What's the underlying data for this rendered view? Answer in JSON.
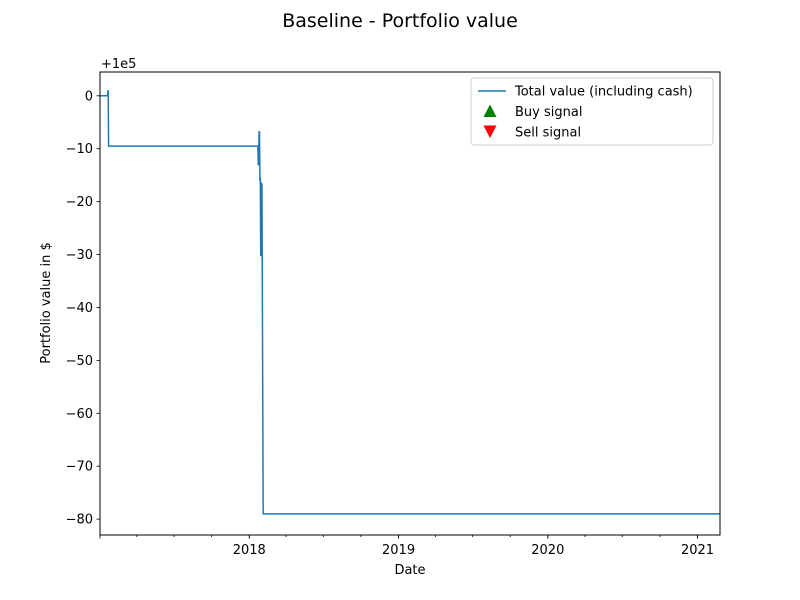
{
  "chart_data": {
    "type": "line",
    "title": "Baseline - Portfolio value",
    "xlabel": "Date",
    "ylabel": "Portfolio value in $",
    "y_offset_text": "+1e5",
    "x_axis": "date",
    "xlim": [
      "2017-01-01",
      "2021-02-25"
    ],
    "ylim": [
      -83,
      4.5
    ],
    "x_ticks": [
      {
        "date": "2018-01-01",
        "label": "2018"
      },
      {
        "date": "2019-01-01",
        "label": "2019"
      },
      {
        "date": "2020-01-01",
        "label": "2020"
      },
      {
        "date": "2021-01-01",
        "label": "2021"
      }
    ],
    "y_ticks": [
      {
        "value": 0,
        "label": "0"
      },
      {
        "value": -10,
        "label": "−10"
      },
      {
        "value": -20,
        "label": "−20"
      },
      {
        "value": -30,
        "label": "−30"
      },
      {
        "value": -40,
        "label": "−40"
      },
      {
        "value": -50,
        "label": "−50"
      },
      {
        "value": -60,
        "label": "−60"
      },
      {
        "value": -70,
        "label": "−70"
      },
      {
        "value": -80,
        "label": "−80"
      }
    ],
    "grid": false,
    "legend_position": "top-right",
    "series": [
      {
        "name": "Total value (including cash)",
        "color": "#1f77b4",
        "points": [
          [
            "2017-01-01",
            0
          ],
          [
            "2017-01-19",
            0
          ],
          [
            "2017-01-21",
            1
          ],
          [
            "2017-01-22",
            -9.5
          ],
          [
            "2018-01-22",
            -9.5
          ],
          [
            "2018-01-23",
            -13
          ],
          [
            "2018-01-24",
            -13
          ],
          [
            "2018-01-25",
            -6.8
          ],
          [
            "2018-01-26",
            -6.8
          ],
          [
            "2018-01-27",
            -16
          ],
          [
            "2018-01-28",
            -15.5
          ],
          [
            "2018-01-29",
            -30.2
          ],
          [
            "2018-01-30",
            -19
          ],
          [
            "2018-01-31",
            -16.5
          ],
          [
            "2018-02-01",
            -16.8
          ],
          [
            "2018-02-04",
            -79
          ],
          [
            "2021-02-25",
            -79
          ]
        ]
      }
    ],
    "legend_entries": [
      {
        "label": "Total value (including cash)",
        "marker": "line",
        "color": "#1f77b4"
      },
      {
        "label": "Buy signal",
        "marker": "triangle-up",
        "color": "#008000"
      },
      {
        "label": "Sell signal",
        "marker": "triangle-down",
        "color": "#ff0000"
      }
    ]
  }
}
